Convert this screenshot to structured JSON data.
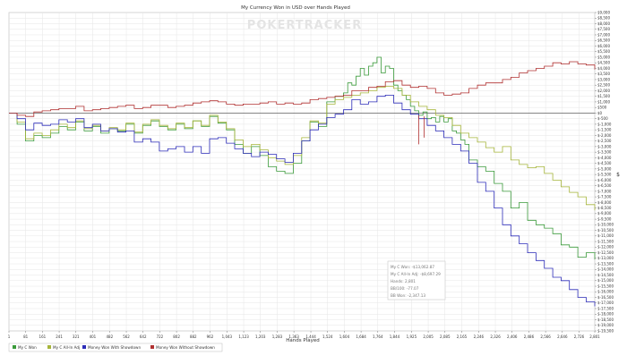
{
  "chart_data": {
    "type": "line",
    "title": "My Currency Won in USD over Hands Played",
    "xlabel": "Hands Played",
    "ylabel": "$",
    "watermark": "POKERTRACKER",
    "xlim": [
      1,
      2801
    ],
    "ylim": [
      -19500,
      9000
    ],
    "x_ticks": [
      1,
      81,
      161,
      241,
      321,
      401,
      482,
      562,
      642,
      722,
      802,
      882,
      962,
      1043,
      1123,
      1203,
      1283,
      1363,
      1444,
      1524,
      1604,
      1684,
      1764,
      1844,
      1925,
      2005,
      2085,
      2165,
      2246,
      2326,
      2406,
      2486,
      2566,
      2646,
      2726,
      2801
    ],
    "x_tick_labels": [
      "1",
      "81",
      "161",
      "241",
      "321",
      "401",
      "482",
      "562",
      "642",
      "722",
      "802",
      "882",
      "962",
      "1,043",
      "1,123",
      "1,203",
      "1,283",
      "1,363",
      "1,444",
      "1,524",
      "1,604",
      "1,684",
      "1,764",
      "1,844",
      "1,925",
      "2,005",
      "2,085",
      "2,165",
      "2,246",
      "2,326",
      "2,406",
      "2,486",
      "2,566",
      "2,646",
      "2,726",
      "2,801"
    ],
    "y_ticks": [
      9000,
      8500,
      8000,
      7500,
      7000,
      6500,
      6000,
      5500,
      5000,
      4500,
      4000,
      3500,
      3000,
      2500,
      2000,
      1500,
      1000,
      500,
      0,
      -500,
      -1000,
      -1500,
      -2000,
      -2500,
      -3000,
      -3500,
      -4000,
      -4500,
      -5000,
      -5500,
      -6000,
      -6500,
      -7000,
      -7500,
      -8000,
      -8500,
      -9000,
      -9500,
      -10000,
      -10500,
      -11000,
      -11500,
      -12000,
      -12500,
      -13000,
      -13500,
      -14000,
      -14500,
      -15000,
      -15500,
      -16000,
      -16500,
      -17000,
      -17500,
      -18000,
      -18500,
      -19000,
      -19500
    ],
    "y_tick_labels": [
      "$9,000",
      "$8,500",
      "$8,000",
      "$7,500",
      "$7,000",
      "$6,500",
      "$6,000",
      "$5,500",
      "$5,000",
      "$4,500",
      "$4,000",
      "$3,500",
      "$3,000",
      "$2,500",
      "$2,000",
      "$1,500",
      "$1,000",
      "$500",
      "$0",
      "$-500",
      "$-1,000",
      "$-1,500",
      "$-2,000",
      "$-2,500",
      "$-3,000",
      "$-3,500",
      "$-4,000",
      "$-4,500",
      "$-5,000",
      "$-5,500",
      "$-6,000",
      "$-6,500",
      "$-7,000",
      "$-7,500",
      "$-8,000",
      "$-8,500",
      "$-9,000",
      "$-9,500",
      "$-10,000",
      "$-10,500",
      "$-11,000",
      "$-11,500",
      "$-12,000",
      "$-12,500",
      "$-13,000",
      "$-13,500",
      "$-14,000",
      "$-14,500",
      "$-15,000",
      "$-15,500",
      "$-16,000",
      "$-16,500",
      "$-17,000",
      "$-17,500",
      "$-18,000",
      "$-18,500",
      "$-19,000",
      "$-19,500"
    ],
    "grid": true,
    "legend_position": "bottom",
    "series": [
      {
        "name": "My C Won",
        "color": "#3a9a3a",
        "x": [
          1,
          40,
          80,
          120,
          160,
          200,
          240,
          280,
          320,
          360,
          400,
          440,
          480,
          520,
          560,
          600,
          640,
          680,
          720,
          760,
          800,
          840,
          880,
          920,
          960,
          1000,
          1040,
          1080,
          1120,
          1160,
          1200,
          1240,
          1280,
          1320,
          1360,
          1400,
          1440,
          1480,
          1520,
          1560,
          1600,
          1620,
          1640,
          1660,
          1680,
          1700,
          1720,
          1740,
          1760,
          1780,
          1800,
          1820,
          1840,
          1860,
          1880,
          1900,
          1920,
          1940,
          1960,
          1980,
          2000,
          2020,
          2040,
          2060,
          2080,
          2100,
          2120,
          2140,
          2160,
          2180,
          2200,
          2240,
          2280,
          2320,
          2360,
          2400,
          2440,
          2480,
          2520,
          2560,
          2600,
          2640,
          2680,
          2720,
          2760,
          2801
        ],
        "y": [
          0,
          -1000,
          -2500,
          -2000,
          -2200,
          -1800,
          -1200,
          -1500,
          -800,
          -1600,
          -1200,
          -1800,
          -1400,
          -1600,
          -1000,
          -1800,
          -1100,
          -700,
          -1200,
          -1500,
          -1000,
          -1400,
          -700,
          -1200,
          -300,
          -900,
          -1500,
          -2800,
          -3600,
          -3000,
          -3800,
          -4800,
          -5200,
          -5400,
          -4500,
          -2500,
          -800,
          -1200,
          1000,
          1500,
          1800,
          2700,
          2500,
          3300,
          4000,
          3400,
          4200,
          4500,
          5000,
          3600,
          4200,
          4000,
          2500,
          2000,
          1600,
          1200,
          600,
          200,
          -200,
          100,
          -500,
          -400,
          -800,
          -300,
          -800,
          -500,
          -1600,
          -1800,
          -2400,
          -2800,
          -4200,
          -4800,
          -5200,
          -6300,
          -7000,
          -8500,
          -8000,
          -9600,
          -10000,
          -10300,
          -10800,
          -11800,
          -12000,
          -12900,
          -12500,
          -13100
        ]
      },
      {
        "name": "My C All-In Adj",
        "color": "#a6b53a",
        "x": [
          1,
          40,
          80,
          120,
          160,
          200,
          240,
          280,
          320,
          360,
          400,
          440,
          480,
          520,
          560,
          600,
          640,
          680,
          720,
          760,
          800,
          840,
          880,
          920,
          960,
          1000,
          1040,
          1080,
          1120,
          1160,
          1200,
          1240,
          1280,
          1320,
          1360,
          1400,
          1440,
          1480,
          1520,
          1560,
          1600,
          1640,
          1680,
          1720,
          1760,
          1800,
          1840,
          1880,
          1920,
          1960,
          2000,
          2040,
          2080,
          2120,
          2160,
          2200,
          2240,
          2280,
          2320,
          2360,
          2400,
          2440,
          2480,
          2520,
          2560,
          2600,
          2640,
          2680,
          2720,
          2760,
          2801
        ],
        "y": [
          0,
          -800,
          -2300,
          -1800,
          -2000,
          -1500,
          -1000,
          -1300,
          -700,
          -1400,
          -1100,
          -1600,
          -1300,
          -1500,
          -900,
          -1700,
          -1000,
          -600,
          -1100,
          -1400,
          -900,
          -1300,
          -700,
          -1100,
          -200,
          -800,
          -1400,
          -2400,
          -3000,
          -2800,
          -3300,
          -4000,
          -4300,
          -4600,
          -3800,
          -2200,
          -700,
          -900,
          800,
          1200,
          1400,
          1600,
          1800,
          2000,
          2300,
          2400,
          2200,
          1600,
          1000,
          600,
          300,
          -200,
          -400,
          -1100,
          -1800,
          -2200,
          -2600,
          -3100,
          -3500,
          -3000,
          -4200,
          -4600,
          -4900,
          -4800,
          -5400,
          -6000,
          -6600,
          -7100,
          -7500,
          -8200,
          -8700
        ]
      },
      {
        "name": "Money Won With Showdown",
        "color": "#2c2cb8",
        "x": [
          1,
          40,
          80,
          120,
          160,
          200,
          240,
          280,
          320,
          360,
          400,
          440,
          480,
          520,
          560,
          600,
          640,
          680,
          720,
          760,
          800,
          840,
          880,
          920,
          960,
          1000,
          1040,
          1080,
          1120,
          1160,
          1200,
          1240,
          1280,
          1320,
          1360,
          1400,
          1440,
          1480,
          1520,
          1560,
          1600,
          1640,
          1680,
          1720,
          1760,
          1800,
          1840,
          1880,
          1920,
          1960,
          2000,
          2040,
          2080,
          2120,
          2160,
          2200,
          2240,
          2280,
          2320,
          2360,
          2400,
          2440,
          2480,
          2520,
          2560,
          2600,
          2640,
          2680,
          2720,
          2760,
          2801
        ],
        "y": [
          0,
          -500,
          -1500,
          -900,
          -1100,
          -1000,
          -600,
          -800,
          -500,
          -1300,
          -1000,
          -1600,
          -1400,
          -1700,
          -1600,
          -2600,
          -2300,
          -2600,
          -3400,
          -3200,
          -3000,
          -3500,
          -3000,
          -3600,
          -2300,
          -2200,
          -2700,
          -3200,
          -3600,
          -3900,
          -3500,
          -3700,
          -4100,
          -4400,
          -3600,
          -2500,
          -1500,
          -1000,
          -400,
          -100,
          300,
          1200,
          800,
          1000,
          1500,
          1600,
          900,
          300,
          -100,
          -500,
          -1100,
          -1600,
          -2200,
          -2800,
          -3400,
          -4500,
          -6200,
          -7000,
          -8500,
          -10000,
          -11000,
          -11700,
          -12500,
          -13200,
          -13900,
          -14700,
          -15000,
          -15800,
          -16500,
          -16900,
          -17300
        ]
      },
      {
        "name": "Money Won Without Showdown",
        "color": "#b03030",
        "x": [
          1,
          40,
          80,
          120,
          160,
          200,
          240,
          280,
          320,
          360,
          400,
          440,
          480,
          520,
          560,
          600,
          640,
          680,
          720,
          760,
          800,
          840,
          880,
          920,
          960,
          1000,
          1040,
          1080,
          1120,
          1160,
          1200,
          1240,
          1280,
          1320,
          1360,
          1400,
          1440,
          1480,
          1520,
          1560,
          1600,
          1640,
          1680,
          1720,
          1760,
          1800,
          1840,
          1880,
          1920,
          1960,
          2000,
          2040,
          2080,
          2120,
          2160,
          2200,
          2240,
          2280,
          2320,
          2360,
          2400,
          2440,
          2480,
          2520,
          2560,
          2600,
          2640,
          2680,
          2720,
          2760,
          2801
        ],
        "y": [
          0,
          -200,
          -300,
          100,
          200,
          300,
          400,
          400,
          600,
          200,
          300,
          400,
          500,
          600,
          700,
          400,
          500,
          700,
          700,
          500,
          600,
          700,
          900,
          1000,
          1100,
          1000,
          800,
          700,
          800,
          800,
          900,
          1000,
          800,
          900,
          800,
          900,
          1200,
          1300,
          1400,
          1500,
          1600,
          2000,
          2000,
          2300,
          2400,
          2800,
          2900,
          2500,
          2300,
          2400,
          2200,
          1800,
          1600,
          1700,
          1800,
          2200,
          2500,
          2700,
          2700,
          3000,
          3200,
          3600,
          3800,
          4000,
          4200,
          4500,
          4400,
          4600,
          4400,
          4300,
          3900
        ]
      }
    ],
    "spikes": [
      {
        "color": "#b03030",
        "x": 1960,
        "y_from": -200,
        "y_to": -2800
      },
      {
        "color": "#b03030",
        "x": 1985,
        "y_from": -300,
        "y_to": -2200
      }
    ],
    "stats_box": {
      "lines": [
        "My C Won: -$13,062.87",
        "My C All-In Adj: -$8,697.29",
        "Hands: 2,801",
        "BB/100: -77.07",
        "BB Won: -2,347.13"
      ]
    }
  }
}
